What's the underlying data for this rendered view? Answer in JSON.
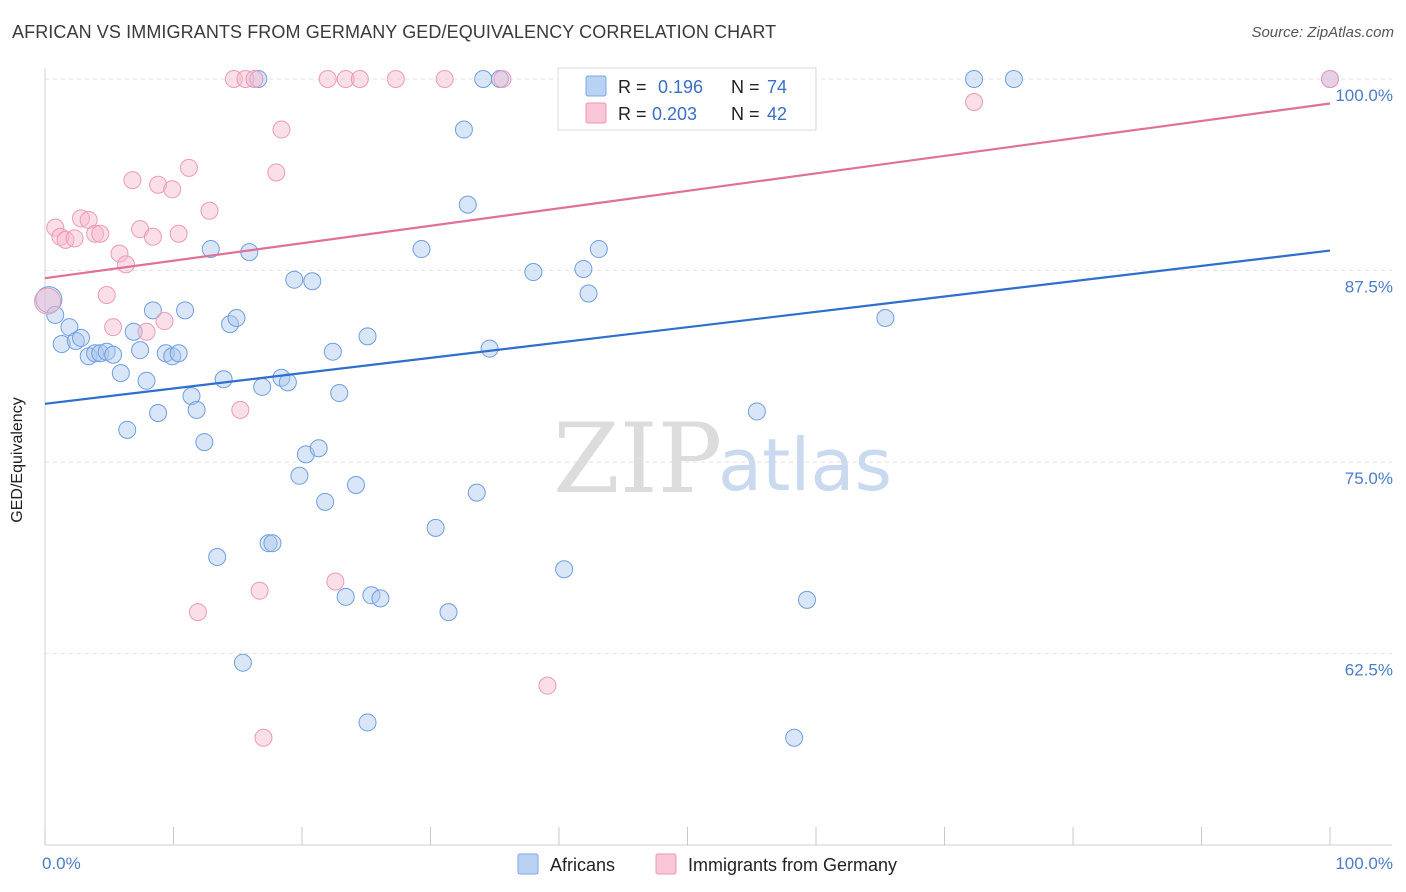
{
  "header": {
    "title": "AFRICAN VS IMMIGRANTS FROM GERMANY GED/EQUIVALENCY CORRELATION CHART",
    "source": "Source: ZipAtlas.com"
  },
  "watermark": {
    "zip": "ZIP",
    "atlas": "atlas"
  },
  "chart_data": {
    "type": "scatter",
    "title": "AFRICAN VS IMMIGRANTS FROM GERMANY GED/EQUIVALENCY CORRELATION CHART",
    "xlabel": "",
    "ylabel": "GED/Equivalency",
    "xlim": [
      0,
      100
    ],
    "ylim": [
      50,
      102
    ],
    "x_tick_labels": [
      "0.0%",
      "100.0%"
    ],
    "y_ticks": [
      62.5,
      75.0,
      87.5,
      100.0
    ],
    "y_tick_labels": [
      "62.5%",
      "75.0%",
      "87.5%",
      "100.0%"
    ],
    "grid": "horizontal dashed",
    "legend": {
      "placement": "top-center",
      "rows": [
        {
          "r_label": "R = ",
          "r_value": "0.196",
          "n_label": "N = ",
          "n_value": "74"
        },
        {
          "r_label": "R = ",
          "r_value": "0.203",
          "n_label": "N = ",
          "n_value": "42"
        }
      ]
    },
    "series": [
      {
        "name": "Africans",
        "color": "#8ab4e8",
        "line_color": "#2d6fcc",
        "trend": {
          "x": [
            0,
            100
          ],
          "y": [
            78.8,
            88.8
          ]
        },
        "points": [
          [
            0.3,
            85.6
          ],
          [
            0.8,
            84.6
          ],
          [
            1.3,
            82.7
          ],
          [
            1.9,
            83.8
          ],
          [
            2.4,
            82.9
          ],
          [
            2.8,
            83.1
          ],
          [
            3.4,
            81.9
          ],
          [
            3.9,
            82.1
          ],
          [
            4.3,
            82.1
          ],
          [
            4.8,
            82.2
          ],
          [
            5.3,
            82.0
          ],
          [
            5.9,
            80.8
          ],
          [
            6.4,
            77.1
          ],
          [
            6.9,
            83.5
          ],
          [
            7.4,
            82.3
          ],
          [
            7.9,
            80.3
          ],
          [
            8.4,
            84.9
          ],
          [
            8.8,
            78.2
          ],
          [
            9.4,
            82.1
          ],
          [
            9.9,
            81.9
          ],
          [
            10.4,
            82.1
          ],
          [
            10.9,
            84.9
          ],
          [
            11.4,
            79.3
          ],
          [
            11.8,
            78.4
          ],
          [
            12.4,
            76.3
          ],
          [
            12.9,
            88.9
          ],
          [
            13.4,
            68.8
          ],
          [
            13.9,
            80.4
          ],
          [
            14.4,
            84.0
          ],
          [
            14.9,
            84.4
          ],
          [
            15.4,
            61.9
          ],
          [
            15.9,
            88.7
          ],
          [
            16.6,
            100.0
          ],
          [
            16.9,
            79.9
          ],
          [
            17.4,
            69.7
          ],
          [
            17.7,
            69.7
          ],
          [
            18.4,
            80.5
          ],
          [
            18.9,
            80.2
          ],
          [
            19.4,
            86.9
          ],
          [
            19.8,
            74.1
          ],
          [
            20.3,
            75.5
          ],
          [
            20.8,
            86.8
          ],
          [
            21.3,
            75.9
          ],
          [
            21.8,
            72.4
          ],
          [
            22.4,
            82.2
          ],
          [
            22.9,
            79.5
          ],
          [
            23.4,
            66.2
          ],
          [
            24.2,
            73.5
          ],
          [
            25.1,
            83.2
          ],
          [
            25.4,
            66.3
          ],
          [
            26.1,
            66.1
          ],
          [
            25.1,
            58.0
          ],
          [
            29.3,
            88.9
          ],
          [
            30.4,
            70.7
          ],
          [
            31.4,
            65.2
          ],
          [
            32.6,
            96.7
          ],
          [
            32.9,
            91.8
          ],
          [
            33.6,
            73.0
          ],
          [
            34.1,
            100.0
          ],
          [
            34.6,
            82.4
          ],
          [
            35.4,
            100.0
          ],
          [
            38.0,
            87.4
          ],
          [
            40.4,
            68.0
          ],
          [
            41.9,
            87.6
          ],
          [
            42.3,
            86.0
          ],
          [
            43.1,
            88.9
          ],
          [
            52.3,
            100.0
          ],
          [
            55.4,
            78.3
          ],
          [
            58.3,
            57.0
          ],
          [
            59.3,
            66.0
          ],
          [
            65.4,
            84.4
          ],
          [
            72.3,
            100.0
          ],
          [
            75.4,
            100.0
          ],
          [
            100.0,
            100.0
          ]
        ]
      },
      {
        "name": "Immigrants from Germany",
        "color": "#f4a8c0",
        "line_color": "#e07099",
        "trend": {
          "x": [
            0,
            100
          ],
          "y": [
            87.0,
            98.4
          ]
        },
        "points": [
          [
            0.2,
            85.5
          ],
          [
            0.8,
            90.3
          ],
          [
            1.2,
            89.7
          ],
          [
            1.6,
            89.5
          ],
          [
            2.3,
            89.6
          ],
          [
            2.8,
            90.9
          ],
          [
            3.4,
            90.8
          ],
          [
            3.9,
            89.9
          ],
          [
            4.3,
            89.9
          ],
          [
            4.8,
            85.9
          ],
          [
            5.3,
            83.8
          ],
          [
            5.8,
            88.6
          ],
          [
            6.3,
            87.9
          ],
          [
            6.8,
            93.4
          ],
          [
            7.4,
            90.2
          ],
          [
            7.9,
            83.5
          ],
          [
            8.4,
            89.7
          ],
          [
            8.8,
            93.1
          ],
          [
            9.3,
            84.2
          ],
          [
            9.9,
            92.8
          ],
          [
            10.4,
            89.9
          ],
          [
            11.2,
            94.2
          ],
          [
            11.9,
            65.2
          ],
          [
            12.8,
            91.4
          ],
          [
            14.7,
            100.0
          ],
          [
            15.2,
            78.4
          ],
          [
            15.6,
            100.0
          ],
          [
            16.3,
            100.0
          ],
          [
            16.7,
            66.6
          ],
          [
            17.0,
            57.0
          ],
          [
            18.0,
            93.9
          ],
          [
            18.4,
            96.7
          ],
          [
            22.0,
            100.0
          ],
          [
            22.6,
            67.2
          ],
          [
            23.4,
            100.0
          ],
          [
            24.5,
            100.0
          ],
          [
            27.3,
            100.0
          ],
          [
            31.1,
            100.0
          ],
          [
            35.6,
            100.0
          ],
          [
            39.1,
            60.4
          ],
          [
            72.3,
            98.5
          ],
          [
            100.0,
            100.0
          ]
        ]
      }
    ]
  },
  "bottom_legend": [
    "Africans",
    "Immigrants from Germany"
  ]
}
